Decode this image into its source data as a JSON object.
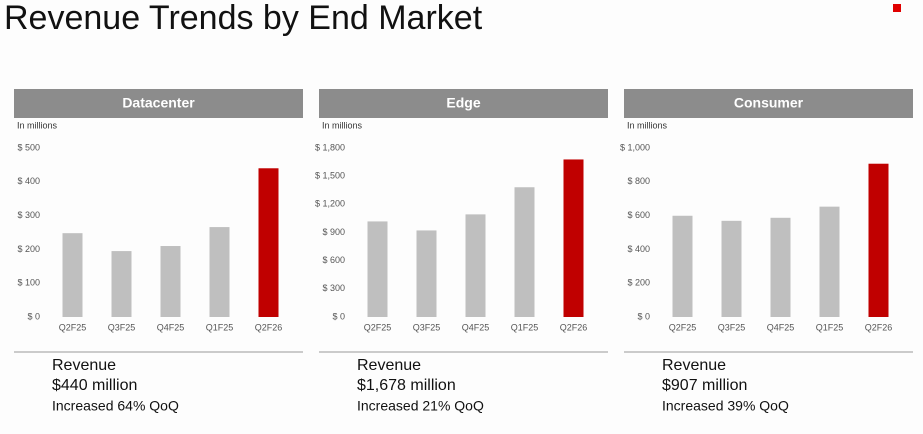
{
  "title": "Revenue Trends by End Market",
  "chart_data": [
    {
      "type": "bar",
      "title": "Datacenter",
      "y_label": "In millions",
      "categories": [
        "Q2F25",
        "Q3F25",
        "Q4F25",
        "Q1F25",
        "Q2F26"
      ],
      "values": [
        248,
        195,
        210,
        266,
        440
      ],
      "colors": [
        "#bfbfbf",
        "#bfbfbf",
        "#bfbfbf",
        "#bfbfbf",
        "#c00000"
      ],
      "ylim": [
        0,
        500
      ],
      "yticks": [
        {
          "value": 0,
          "label": "$ 0"
        },
        {
          "value": 100,
          "label": "$ 100"
        },
        {
          "value": 200,
          "label": "$ 200"
        },
        {
          "value": 300,
          "label": "$ 300"
        },
        {
          "value": 400,
          "label": "$ 400"
        },
        {
          "value": 500,
          "label": "$ 500"
        }
      ],
      "summary": {
        "label": "Revenue",
        "amount": "$440 million",
        "change": "Increased 64% QoQ"
      }
    },
    {
      "type": "bar",
      "title": "Edge",
      "y_label": "In millions",
      "categories": [
        "Q2F25",
        "Q3F25",
        "Q4F25",
        "Q1F25",
        "Q2F26"
      ],
      "values": [
        1018,
        922,
        1093,
        1382,
        1678
      ],
      "colors": [
        "#bfbfbf",
        "#bfbfbf",
        "#bfbfbf",
        "#bfbfbf",
        "#c00000"
      ],
      "ylim": [
        0,
        1800
      ],
      "yticks": [
        {
          "value": 0,
          "label": "$ 0"
        },
        {
          "value": 300,
          "label": "$ 300"
        },
        {
          "value": 600,
          "label": "$ 600"
        },
        {
          "value": 900,
          "label": "$ 900"
        },
        {
          "value": 1200,
          "label": "$ 1,200"
        },
        {
          "value": 1500,
          "label": "$ 1,500"
        },
        {
          "value": 1800,
          "label": "$ 1,800"
        }
      ],
      "summary": {
        "label": "Revenue",
        "amount": "$1,678 million",
        "change": "Increased 21% QoQ"
      }
    },
    {
      "type": "bar",
      "title": "Consumer",
      "y_label": "In millions",
      "categories": [
        "Q2F25",
        "Q3F25",
        "Q4F25",
        "Q1F25",
        "Q2F26"
      ],
      "values": [
        599,
        569,
        587,
        653,
        907
      ],
      "colors": [
        "#bfbfbf",
        "#bfbfbf",
        "#bfbfbf",
        "#bfbfbf",
        "#c00000"
      ],
      "ylim": [
        0,
        1000
      ],
      "yticks": [
        {
          "value": 0,
          "label": "$ 0"
        },
        {
          "value": 200,
          "label": "$ 200"
        },
        {
          "value": 400,
          "label": "$ 400"
        },
        {
          "value": 600,
          "label": "$ 600"
        },
        {
          "value": 800,
          "label": "$ 800"
        },
        {
          "value": 1000,
          "label": "$ 1,000"
        }
      ],
      "summary": {
        "label": "Revenue",
        "amount": "$907 million",
        "change": "Increased 39% QoQ"
      }
    }
  ]
}
